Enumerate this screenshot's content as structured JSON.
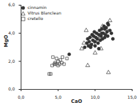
{
  "chart_data": {
    "type": "scatter",
    "xlabel": "CaO",
    "ylabel": "MgO",
    "xlim": [
      0,
      15
    ],
    "xticks": [
      {
        "value": 0,
        "label": "0,0"
      },
      {
        "value": 5,
        "label": "5,0"
      },
      {
        "value": 10,
        "label": "10,0"
      },
      {
        "value": 15,
        "label": "15,0"
      }
    ],
    "ylim": [
      0,
      6
    ],
    "yticks": [
      {
        "value": 0,
        "label": "0,0"
      },
      {
        "value": 2,
        "label": "2,0"
      },
      {
        "value": 4,
        "label": "4,0"
      },
      {
        "value": 6,
        "label": "6,0"
      }
    ],
    "legend": "top-left",
    "series": [
      {
        "name": "cinnamin",
        "color": "#333333",
        "marker": "filled-circle",
        "x": [
          6.5,
          8.6,
          8.9,
          9.0,
          9.2,
          9.3,
          9.5,
          9.6,
          9.7,
          9.8,
          9.9,
          10.0,
          10.1,
          10.2,
          10.3,
          10.4,
          10.5,
          10.6,
          10.7,
          10.8,
          10.9,
          11.0,
          11.1,
          11.2,
          11.3,
          11.4,
          11.5,
          11.6,
          11.7,
          11.8,
          12.0,
          12.2,
          9.4,
          10.0,
          10.5,
          10.9,
          11.3,
          11.7,
          12.4,
          9.1
        ],
        "values": [
          2.5,
          3.0,
          3.3,
          3.6,
          3.4,
          3.7,
          3.2,
          3.9,
          3.5,
          3.8,
          4.1,
          3.4,
          3.7,
          4.0,
          3.6,
          3.3,
          3.9,
          4.2,
          3.5,
          3.8,
          4.3,
          3.6,
          4.0,
          4.5,
          3.7,
          3.9,
          4.4,
          4.1,
          3.8,
          4.6,
          4.2,
          4.0,
          3.0,
          3.1,
          2.9,
          4.0,
          4.3,
          4.7,
          3.6,
          3.1
        ]
      },
      {
        "name": "Vitrus Blanclean",
        "color": "#333333",
        "marker": "triangle",
        "x": [
          8.2,
          8.5,
          8.8,
          9.0,
          9.3,
          9.5,
          10.0,
          10.5,
          11.0,
          11.5,
          11.8,
          12.0,
          9.8,
          10.8
        ],
        "values": [
          2.9,
          3.3,
          4.2,
          1.7,
          3.1,
          3.8,
          2.6,
          3.6,
          4.5,
          4.3,
          1.2,
          4.9,
          3.2,
          2.9
        ]
      },
      {
        "name": "cretello",
        "color": "#333333",
        "marker": "square",
        "x": [
          3.8,
          4.0,
          4.2,
          4.5,
          4.7,
          5.0,
          5.2,
          5.5,
          5.8,
          4.3,
          4.8,
          5.3,
          5.6,
          6.2,
          4.6,
          5.0
        ],
        "values": [
          1.1,
          1.1,
          1.7,
          1.8,
          1.8,
          1.7,
          1.8,
          1.9,
          1.8,
          2.3,
          2.2,
          2.1,
          2.3,
          2.2,
          1.9,
          2.0
        ]
      }
    ]
  }
}
